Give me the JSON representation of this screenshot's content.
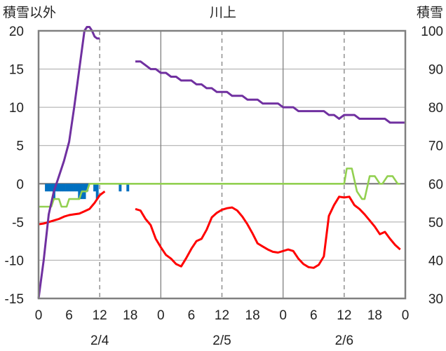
{
  "chart_data": {
    "type": "line",
    "title": "川上",
    "left_axis_label": "積雪以外",
    "right_axis_label": "積雪",
    "left_ylim": [
      -15,
      20
    ],
    "left_yticks": [
      "20",
      "15",
      "10",
      "5",
      "0",
      "-5",
      "-10",
      "-15"
    ],
    "right_ylim": [
      30,
      100
    ],
    "right_yticks": [
      "100",
      "90",
      "80",
      "70",
      "60",
      "50",
      "40",
      "30"
    ],
    "x_hour_labels": [
      "0",
      "6",
      "12",
      "18",
      "0",
      "6",
      "12",
      "18",
      "0",
      "6",
      "12",
      "18",
      "0"
    ],
    "x_date_labels": [
      "2/4",
      "2/5",
      "2/6"
    ],
    "grid": true,
    "colors": {
      "snow_depth": "#7030A0",
      "temperature": "#FF0000",
      "wind": "#92D050",
      "precip": "#0070C0"
    },
    "series": [
      {
        "key": "snow_depth",
        "axis": "right",
        "segments": [
          [
            [
              0,
              30
            ],
            [
              2,
              40
            ],
            [
              4,
              52
            ],
            [
              6,
              58
            ],
            [
              8,
              62
            ],
            [
              10,
              66
            ],
            [
              12,
              71
            ],
            [
              14,
              80
            ],
            [
              16,
              90
            ],
            [
              18,
              100
            ],
            [
              19,
              101
            ],
            [
              20,
              101
            ],
            [
              21,
              100
            ],
            [
              22,
              98.5
            ],
            [
              23,
              98
            ],
            [
              24,
              98
            ]
          ],
          [
            [
              38,
              92
            ],
            [
              40,
              92
            ],
            [
              42,
              91
            ],
            [
              44,
              90
            ],
            [
              46,
              90
            ],
            [
              48,
              89
            ],
            [
              50,
              89
            ],
            [
              52,
              88
            ],
            [
              54,
              88
            ],
            [
              56,
              87
            ],
            [
              58,
              87
            ],
            [
              60,
              87
            ],
            [
              62,
              86
            ],
            [
              64,
              86
            ],
            [
              66,
              85
            ],
            [
              68,
              85
            ],
            [
              70,
              84
            ],
            [
              72,
              84
            ],
            [
              74,
              84
            ],
            [
              76,
              83
            ],
            [
              78,
              83
            ],
            [
              80,
              83
            ],
            [
              82,
              82
            ],
            [
              84,
              82
            ],
            [
              86,
              82
            ],
            [
              88,
              81
            ],
            [
              90,
              81
            ],
            [
              92,
              81
            ],
            [
              94,
              81
            ],
            [
              96,
              80
            ],
            [
              98,
              80
            ],
            [
              100,
              80
            ],
            [
              102,
              79
            ],
            [
              104,
              79
            ],
            [
              106,
              79
            ],
            [
              108,
              79
            ],
            [
              110,
              79
            ],
            [
              112,
              79
            ],
            [
              114,
              78
            ],
            [
              116,
              78
            ],
            [
              118,
              77
            ],
            [
              120,
              78
            ],
            [
              122,
              78
            ],
            [
              124,
              78
            ],
            [
              126,
              77
            ],
            [
              128,
              77
            ],
            [
              130,
              77
            ],
            [
              132,
              77
            ],
            [
              134,
              77
            ],
            [
              136,
              77
            ],
            [
              138,
              76
            ],
            [
              140,
              76
            ],
            [
              142,
              76
            ],
            [
              144,
              76
            ]
          ]
        ]
      },
      {
        "key": "temperature",
        "axis": "left",
        "segments": [
          [
            [
              0,
              -5.3
            ],
            [
              2,
              -5.2
            ],
            [
              4,
              -5.0
            ],
            [
              6,
              -4.8
            ],
            [
              8,
              -4.6
            ],
            [
              10,
              -4.3
            ],
            [
              12,
              -4.1
            ],
            [
              14,
              -4.0
            ],
            [
              16,
              -3.9
            ],
            [
              18,
              -3.6
            ],
            [
              20,
              -3.3
            ],
            [
              22,
              -2.5
            ],
            [
              24,
              -1.5
            ],
            [
              26,
              -1.0
            ]
          ],
          [
            [
              38,
              -3.3
            ],
            [
              40,
              -3.5
            ],
            [
              42,
              -4.6
            ],
            [
              44,
              -5.4
            ],
            [
              46,
              -7.2
            ],
            [
              48,
              -8.3
            ],
            [
              50,
              -9.3
            ],
            [
              52,
              -9.8
            ],
            [
              54,
              -10.5
            ],
            [
              56,
              -10.8
            ],
            [
              58,
              -9.7
            ],
            [
              60,
              -8.5
            ],
            [
              62,
              -7.5
            ],
            [
              64,
              -7.2
            ],
            [
              66,
              -6.0
            ],
            [
              68,
              -4.4
            ],
            [
              70,
              -3.8
            ],
            [
              72,
              -3.4
            ],
            [
              74,
              -3.2
            ],
            [
              76,
              -3.1
            ],
            [
              78,
              -3.5
            ],
            [
              80,
              -4.3
            ],
            [
              82,
              -5.3
            ],
            [
              84,
              -6.5
            ],
            [
              86,
              -7.8
            ],
            [
              88,
              -8.2
            ],
            [
              90,
              -8.6
            ],
            [
              92,
              -8.9
            ],
            [
              94,
              -9.0
            ],
            [
              96,
              -8.8
            ],
            [
              98,
              -8.6
            ],
            [
              100,
              -8.8
            ],
            [
              102,
              -9.8
            ],
            [
              104,
              -10.5
            ],
            [
              106,
              -10.9
            ],
            [
              108,
              -11.0
            ],
            [
              110,
              -10.6
            ],
            [
              112,
              -9.5
            ],
            [
              114,
              -4.2
            ],
            [
              116,
              -2.8
            ],
            [
              118,
              -1.7
            ],
            [
              120,
              -1.8
            ],
            [
              122,
              -1.7
            ],
            [
              124,
              -2.8
            ],
            [
              126,
              -3.3
            ],
            [
              128,
              -4.0
            ],
            [
              130,
              -4.8
            ],
            [
              132,
              -5.6
            ],
            [
              134,
              -6.6
            ],
            [
              136,
              -6.3
            ],
            [
              138,
              -7.2
            ],
            [
              140,
              -8.0
            ],
            [
              142,
              -8.6
            ]
          ]
        ]
      },
      {
        "key": "wind",
        "axis": "left",
        "segments": [
          [
            [
              0,
              -3
            ],
            [
              5,
              -3
            ],
            [
              6,
              -2
            ],
            [
              8,
              -2
            ],
            [
              9,
              -3
            ],
            [
              11,
              -3
            ],
            [
              12,
              -2
            ],
            [
              16,
              -2
            ],
            [
              17,
              -1
            ],
            [
              19,
              -1
            ],
            [
              20,
              0
            ],
            [
              48,
              0
            ],
            [
              120,
              0
            ],
            [
              121,
              2
            ],
            [
              123,
              2
            ],
            [
              125,
              -1
            ],
            [
              127,
              -2
            ],
            [
              128,
              -2
            ],
            [
              130,
              1
            ],
            [
              132,
              1
            ],
            [
              134,
              0
            ],
            [
              135,
              0
            ],
            [
              137,
              1
            ],
            [
              139,
              1
            ],
            [
              141,
              0
            ],
            [
              142,
              0
            ]
          ]
        ]
      }
    ],
    "precip_bars": [
      {
        "x": 3,
        "value": -1
      },
      {
        "x": 4,
        "value": -1
      },
      {
        "x": 5,
        "value": -1
      },
      {
        "x": 6,
        "value": -2
      },
      {
        "x": 7,
        "value": -1
      },
      {
        "x": 8,
        "value": -1
      },
      {
        "x": 9,
        "value": -1
      },
      {
        "x": 10,
        "value": -1
      },
      {
        "x": 11,
        "value": -1
      },
      {
        "x": 12,
        "value": -1
      },
      {
        "x": 13,
        "value": -1
      },
      {
        "x": 14,
        "value": -1
      },
      {
        "x": 15,
        "value": -1
      },
      {
        "x": 16,
        "value": -2
      },
      {
        "x": 17,
        "value": -2
      },
      {
        "x": 18,
        "value": -2
      },
      {
        "x": 19,
        "value": -1
      },
      {
        "x": 22,
        "value": -1
      },
      {
        "x": 23,
        "value": -2
      },
      {
        "x": 32,
        "value": -1
      },
      {
        "x": 35,
        "value": -1
      }
    ]
  }
}
